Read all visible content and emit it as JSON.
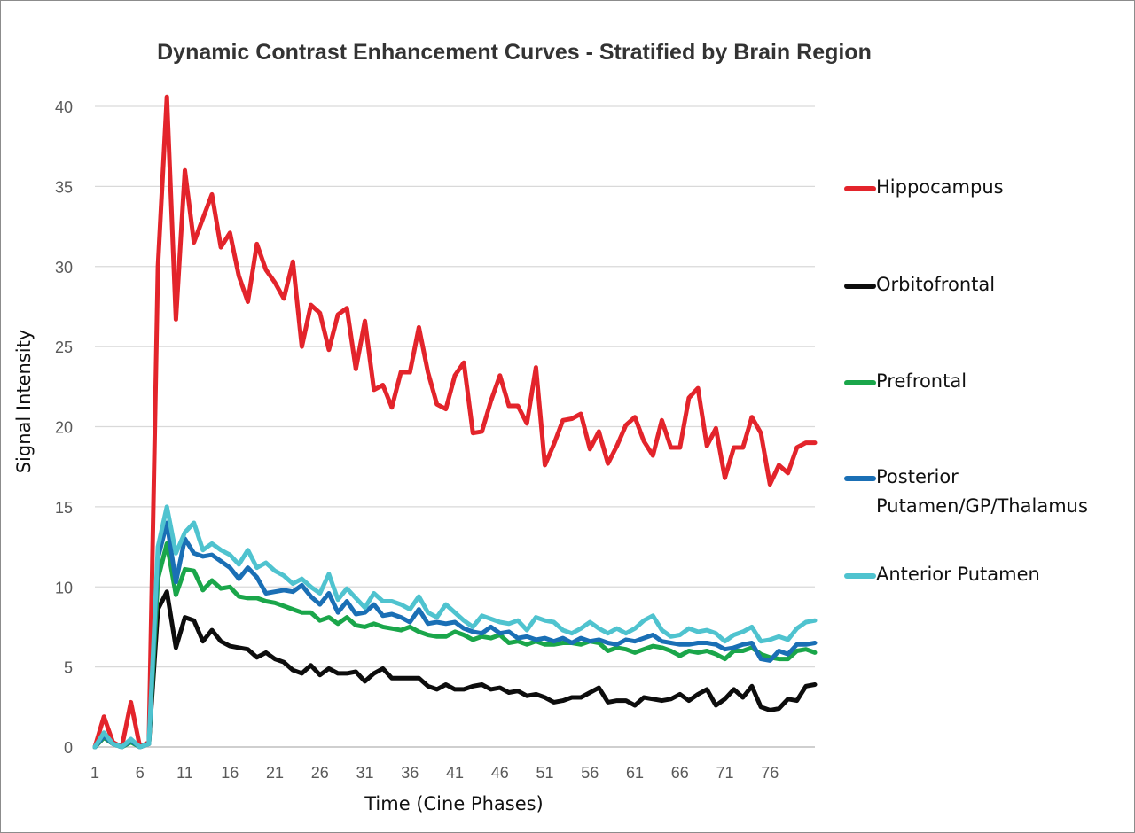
{
  "chart_data": {
    "type": "line",
    "title": "Dynamic Contrast Enhancement Curves - Stratified by Brain Region",
    "xlabel": "Time (Cine Phases)",
    "ylabel": "Signal Intensity",
    "ylim": [
      0,
      40
    ],
    "yticks": [
      0,
      5,
      10,
      15,
      20,
      25,
      30,
      35,
      40
    ],
    "xlim": [
      1,
      81
    ],
    "xticks": [
      1,
      6,
      11,
      16,
      21,
      26,
      31,
      36,
      41,
      46,
      51,
      56,
      61,
      66,
      71,
      76
    ],
    "grid": "horizontal",
    "legend_position": "right",
    "x": [
      1,
      2,
      3,
      4,
      5,
      6,
      7,
      8,
      9,
      10,
      11,
      12,
      13,
      14,
      15,
      16,
      17,
      18,
      19,
      20,
      21,
      22,
      23,
      24,
      25,
      26,
      27,
      28,
      29,
      30,
      31,
      32,
      33,
      34,
      35,
      36,
      37,
      38,
      39,
      40,
      41,
      42,
      43,
      44,
      45,
      46,
      47,
      48,
      49,
      50,
      51,
      52,
      53,
      54,
      55,
      56,
      57,
      58,
      59,
      60,
      61,
      62,
      63,
      64,
      65,
      66,
      67,
      68,
      69,
      70,
      71,
      72,
      73,
      74,
      75,
      76,
      77,
      78,
      79,
      80,
      81
    ],
    "series": [
      {
        "name": "Hippocampus",
        "color": "#e3242b",
        "values": [
          0,
          1.9,
          0.3,
          0,
          2.8,
          0,
          0.3,
          30,
          40.6,
          26.7,
          36,
          31.5,
          33,
          34.5,
          31.2,
          32.1,
          29.4,
          27.8,
          31.4,
          29.8,
          29,
          28,
          30.3,
          25,
          27.6,
          27.1,
          24.8,
          27,
          27.4,
          23.6,
          26.6,
          22.3,
          22.6,
          21.2,
          23.4,
          23.4,
          26.2,
          23.4,
          21.4,
          21.1,
          23.2,
          24,
          19.6,
          19.7,
          21.6,
          23.2,
          21.3,
          21.3,
          20.2,
          23.7,
          17.6,
          18.9,
          20.4,
          20.5,
          20.8,
          18.6,
          19.7,
          17.7,
          18.8,
          20.1,
          20.6,
          19.1,
          18.2,
          20.4,
          18.7,
          18.7,
          21.8,
          22.4,
          18.8,
          19.9,
          16.8,
          18.7,
          18.7,
          20.6,
          19.6,
          16.4,
          17.6,
          17.1,
          18.7,
          19,
          19
        ]
      },
      {
        "name": "Orbitofrontal",
        "color": "#0d0d0d",
        "values": [
          0,
          0.6,
          0.2,
          0,
          0.4,
          0,
          0.2,
          8.6,
          9.7,
          6.2,
          8.1,
          7.9,
          6.6,
          7.3,
          6.6,
          6.3,
          6.2,
          6.1,
          5.6,
          5.9,
          5.5,
          5.3,
          4.8,
          4.6,
          5.1,
          4.5,
          4.9,
          4.6,
          4.6,
          4.7,
          4.1,
          4.6,
          4.9,
          4.3,
          4.3,
          4.3,
          4.3,
          3.8,
          3.6,
          3.9,
          3.6,
          3.6,
          3.8,
          3.9,
          3.6,
          3.7,
          3.4,
          3.5,
          3.2,
          3.3,
          3.1,
          2.8,
          2.9,
          3.1,
          3.1,
          3.4,
          3.7,
          2.8,
          2.9,
          2.9,
          2.6,
          3.1,
          3,
          2.9,
          3,
          3.3,
          2.9,
          3.3,
          3.6,
          2.6,
          3,
          3.6,
          3.1,
          3.8,
          2.5,
          2.3,
          2.4,
          3,
          2.9,
          3.8,
          3.9
        ]
      },
      {
        "name": "Prefrontal",
        "color": "#1aa64a",
        "values": [
          0,
          0.6,
          0.2,
          0,
          0.3,
          0,
          0.2,
          10.5,
          12.7,
          9.5,
          11.1,
          11,
          9.8,
          10.4,
          9.9,
          10,
          9.4,
          9.3,
          9.3,
          9.1,
          9,
          8.8,
          8.6,
          8.4,
          8.4,
          7.9,
          8.1,
          7.7,
          8.1,
          7.6,
          7.5,
          7.7,
          7.5,
          7.4,
          7.3,
          7.5,
          7.2,
          7,
          6.9,
          6.9,
          7.2,
          7,
          6.7,
          6.9,
          6.8,
          7,
          6.5,
          6.6,
          6.4,
          6.6,
          6.4,
          6.4,
          6.5,
          6.5,
          6.4,
          6.6,
          6.5,
          6,
          6.2,
          6.1,
          5.9,
          6.1,
          6.3,
          6.2,
          6,
          5.7,
          6,
          5.9,
          6,
          5.8,
          5.5,
          6,
          6,
          6.2,
          5.8,
          5.6,
          5.5,
          5.5,
          6,
          6.1,
          5.9
        ]
      },
      {
        "name": "Posterior\nPutamen/GP/Thalamus",
        "color": "#1a6fb5",
        "values": [
          0,
          0.7,
          0.2,
          0,
          0.4,
          0,
          0.2,
          11.8,
          14,
          10.3,
          13,
          12.1,
          11.9,
          12,
          11.6,
          11.2,
          10.5,
          11.2,
          10.6,
          9.6,
          9.7,
          9.8,
          9.7,
          10.1,
          9.4,
          8.9,
          9.6,
          8.4,
          9.1,
          8.3,
          8.4,
          8.9,
          8.2,
          8.3,
          8.1,
          7.8,
          8.6,
          7.7,
          7.8,
          7.7,
          7.8,
          7.4,
          7.2,
          7.1,
          7.5,
          7.1,
          7.2,
          6.8,
          6.9,
          6.7,
          6.8,
          6.6,
          6.8,
          6.5,
          6.8,
          6.6,
          6.7,
          6.5,
          6.4,
          6.7,
          6.6,
          6.8,
          7,
          6.6,
          6.5,
          6.4,
          6.4,
          6.5,
          6.5,
          6.4,
          6.1,
          6.2,
          6.4,
          6.5,
          5.5,
          5.4,
          6,
          5.8,
          6.4,
          6.4,
          6.5
        ]
      },
      {
        "name": "Anterior Putamen",
        "color": "#4fc3cf",
        "values": [
          0,
          0.9,
          0.2,
          0,
          0.5,
          0,
          0.2,
          12.5,
          15,
          12.1,
          13.4,
          14,
          12.3,
          12.7,
          12.3,
          12,
          11.4,
          12.3,
          11.2,
          11.5,
          11,
          10.7,
          10.2,
          10.5,
          10,
          9.6,
          10.8,
          9.2,
          9.9,
          9.3,
          8.7,
          9.6,
          9.1,
          9.1,
          8.9,
          8.6,
          9.4,
          8.4,
          8.1,
          8.9,
          8.4,
          7.9,
          7.5,
          8.2,
          8,
          7.8,
          7.7,
          7.9,
          7.3,
          8.1,
          7.9,
          7.8,
          7.3,
          7.1,
          7.4,
          7.8,
          7.4,
          7.1,
          7.4,
          7.1,
          7.4,
          7.9,
          8.2,
          7.3,
          6.9,
          7,
          7.4,
          7.2,
          7.3,
          7.1,
          6.6,
          7,
          7.2,
          7.5,
          6.6,
          6.7,
          6.9,
          6.7,
          7.4,
          7.8,
          7.9
        ]
      }
    ]
  }
}
